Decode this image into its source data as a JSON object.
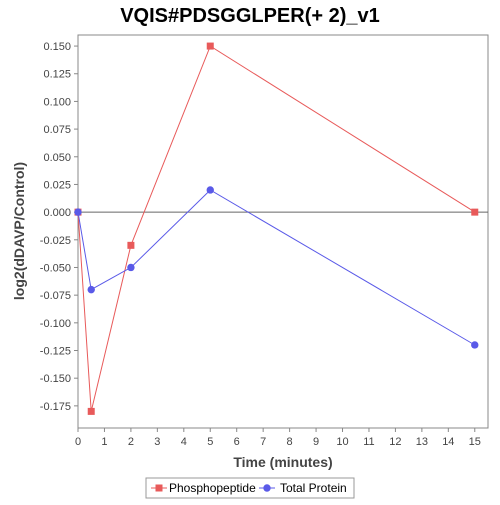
{
  "chart_data": {
    "type": "line",
    "title": "VQIS#PDSGGLPER(+ 2)_v1",
    "xlabel": "Time (minutes)",
    "ylabel": "log2(dDAVP/Control)",
    "xlim": [
      0,
      15.5
    ],
    "ylim": [
      -0.195,
      0.16
    ],
    "x_ticks": [
      0,
      1,
      2,
      3,
      4,
      5,
      6,
      7,
      8,
      9,
      10,
      11,
      12,
      13,
      14,
      15
    ],
    "y_ticks": [
      0.15,
      0.125,
      0.1,
      0.075,
      0.05,
      0.025,
      0.0,
      -0.025,
      -0.05,
      -0.075,
      -0.1,
      -0.125,
      -0.15,
      -0.175
    ],
    "y_tick_labels": [
      "0.150",
      "0.125",
      "0.100",
      "0.075",
      "0.050",
      "0.025",
      "0.000",
      "-0.025",
      "-0.050",
      "-0.075",
      "-0.100",
      "-0.125",
      "-0.150",
      "-0.175"
    ],
    "zero_line": true,
    "grid": false,
    "legend_position": "bottom",
    "series": [
      {
        "name": "Phosphopeptide",
        "color": "#e85a5a",
        "marker": "square",
        "x": [
          0,
          0.5,
          2,
          5,
          15
        ],
        "y": [
          0.0,
          -0.18,
          -0.03,
          0.15,
          0.0
        ]
      },
      {
        "name": "Total Protein",
        "color": "#5a5ae8",
        "marker": "circle",
        "x": [
          0,
          0.5,
          2,
          5,
          15
        ],
        "y": [
          0.0,
          -0.07,
          -0.05,
          0.02,
          -0.12
        ]
      }
    ]
  }
}
